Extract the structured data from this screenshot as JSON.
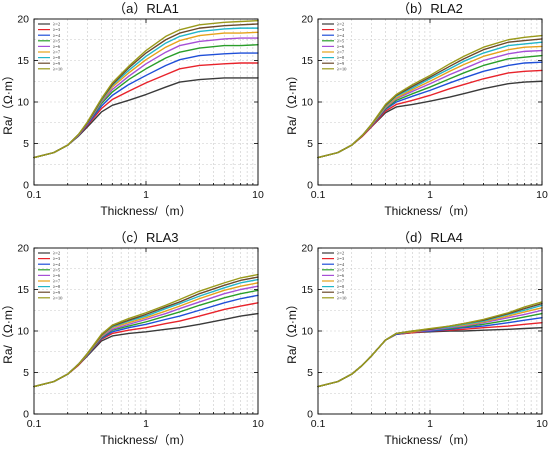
{
  "chart_data": [
    {
      "type": "line",
      "title": "（a）RLA1",
      "xlabel": "Thickness/（m）",
      "ylabel": "Ra/（Ω·m）",
      "xscale": "log",
      "xlim": [
        0.1,
        10
      ],
      "ylim": [
        0,
        20
      ],
      "xticks": [
        0.1,
        1,
        10
      ],
      "xtick_labels": [
        "0.1",
        "1",
        "10"
      ],
      "yticks": [
        0,
        5,
        10,
        15,
        20
      ],
      "ytick_labels": [
        "0",
        "5",
        "10",
        "15",
        "20"
      ],
      "grid": true,
      "legend": "top-left",
      "x": [
        0.1,
        0.15,
        0.2,
        0.25,
        0.3,
        0.4,
        0.5,
        0.7,
        1,
        1.5,
        2,
        3,
        5,
        7,
        10
      ],
      "series": [
        {
          "name": "λ=2",
          "color": "#3a3a3a",
          "values": [
            3.3,
            3.9,
            4.8,
            5.9,
            7.0,
            8.8,
            9.6,
            10.2,
            10.9,
            11.8,
            12.4,
            12.7,
            12.9,
            12.9,
            12.9
          ]
        },
        {
          "name": "λ=3",
          "color": "#e8232b",
          "values": [
            3.3,
            3.9,
            4.8,
            6.0,
            7.2,
            9.2,
            10.3,
            11.3,
            12.3,
            13.3,
            14.0,
            14.4,
            14.6,
            14.7,
            14.7
          ]
        },
        {
          "name": "λ=4",
          "color": "#1f4fd8",
          "values": [
            3.3,
            3.9,
            4.8,
            6.0,
            7.3,
            9.5,
            10.8,
            12.1,
            13.2,
            14.4,
            15.1,
            15.6,
            15.8,
            15.9,
            15.9
          ]
        },
        {
          "name": "λ=5",
          "color": "#2a9e2a",
          "values": [
            3.3,
            3.9,
            4.8,
            6.0,
            7.4,
            9.8,
            11.2,
            12.7,
            14.0,
            15.3,
            16.0,
            16.5,
            16.8,
            16.8,
            16.9
          ]
        },
        {
          "name": "λ=6",
          "color": "#a64fd6",
          "values": [
            3.3,
            3.9,
            4.8,
            6.0,
            7.4,
            10.0,
            11.5,
            13.1,
            14.6,
            16.0,
            16.8,
            17.3,
            17.6,
            17.7,
            17.7
          ]
        },
        {
          "name": "λ=7",
          "color": "#e6a21a",
          "values": [
            3.3,
            3.9,
            4.8,
            6.1,
            7.5,
            10.1,
            11.8,
            13.5,
            15.1,
            16.6,
            17.4,
            18.0,
            18.3,
            18.3,
            18.4
          ]
        },
        {
          "name": "λ=8",
          "color": "#21b6c9",
          "values": [
            3.3,
            3.9,
            4.8,
            6.1,
            7.5,
            10.2,
            12.0,
            13.8,
            15.5,
            17.1,
            17.9,
            18.5,
            18.8,
            18.9,
            18.9
          ]
        },
        {
          "name": "λ=9",
          "color": "#6b4a2b",
          "values": [
            3.3,
            3.9,
            4.8,
            6.1,
            7.5,
            10.3,
            12.1,
            14.1,
            15.9,
            17.5,
            18.3,
            18.9,
            19.2,
            19.3,
            19.4
          ]
        },
        {
          "name": "λ=10",
          "color": "#9a9a1a",
          "values": [
            3.3,
            3.9,
            4.8,
            6.1,
            7.6,
            10.4,
            12.3,
            14.3,
            16.2,
            17.9,
            18.7,
            19.3,
            19.6,
            19.7,
            19.8
          ]
        }
      ]
    },
    {
      "type": "line",
      "title": "（b）RLA2",
      "xlabel": "Thickness/（m）",
      "ylabel": "Ra/（Ω·m）",
      "xscale": "log",
      "xlim": [
        0.1,
        10
      ],
      "ylim": [
        0,
        20
      ],
      "xticks": [
        0.1,
        1,
        10
      ],
      "xtick_labels": [
        "0.1",
        "1",
        "10"
      ],
      "yticks": [
        0,
        5,
        10,
        15,
        20
      ],
      "ytick_labels": [
        "0",
        "5",
        "10",
        "15",
        "20"
      ],
      "grid": true,
      "legend": "top-left",
      "x": [
        0.1,
        0.15,
        0.2,
        0.25,
        0.3,
        0.4,
        0.5,
        0.7,
        1,
        1.5,
        2,
        3,
        5,
        7,
        10
      ],
      "series": [
        {
          "name": "λ=2",
          "color": "#3a3a3a",
          "values": [
            3.3,
            3.9,
            4.8,
            5.9,
            7.0,
            8.7,
            9.4,
            9.7,
            10.1,
            10.6,
            11.0,
            11.6,
            12.2,
            12.4,
            12.5
          ]
        },
        {
          "name": "λ=3",
          "color": "#e8232b",
          "values": [
            3.3,
            3.9,
            4.8,
            5.9,
            7.0,
            8.9,
            9.7,
            10.2,
            10.8,
            11.6,
            12.1,
            12.8,
            13.5,
            13.7,
            13.8
          ]
        },
        {
          "name": "λ=4",
          "color": "#1f4fd8",
          "values": [
            3.3,
            3.9,
            4.8,
            6.0,
            7.1,
            9.1,
            10.0,
            10.7,
            11.4,
            12.3,
            12.9,
            13.7,
            14.4,
            14.7,
            14.8
          ]
        },
        {
          "name": "λ=5",
          "color": "#2a9e2a",
          "values": [
            3.3,
            3.9,
            4.8,
            6.0,
            7.2,
            9.2,
            10.2,
            11.0,
            11.8,
            12.8,
            13.5,
            14.4,
            15.2,
            15.4,
            15.6
          ]
        },
        {
          "name": "λ=6",
          "color": "#a64fd6",
          "values": [
            3.3,
            3.9,
            4.8,
            6.0,
            7.2,
            9.3,
            10.4,
            11.3,
            12.2,
            13.3,
            14.0,
            15.0,
            15.8,
            16.1,
            16.2
          ]
        },
        {
          "name": "λ=7",
          "color": "#e6a21a",
          "values": [
            3.3,
            3.9,
            4.8,
            6.0,
            7.2,
            9.4,
            10.5,
            11.5,
            12.5,
            13.7,
            14.5,
            15.5,
            16.3,
            16.6,
            16.7
          ]
        },
        {
          "name": "λ=8",
          "color": "#21b6c9",
          "values": [
            3.3,
            3.9,
            4.8,
            6.0,
            7.3,
            9.5,
            10.7,
            11.7,
            12.8,
            14.0,
            14.9,
            15.9,
            16.8,
            17.0,
            17.2
          ]
        },
        {
          "name": "λ=9",
          "color": "#6b4a2b",
          "values": [
            3.3,
            3.9,
            4.8,
            6.0,
            7.3,
            9.6,
            10.8,
            11.9,
            13.0,
            14.3,
            15.2,
            16.3,
            17.2,
            17.4,
            17.6
          ]
        },
        {
          "name": "λ=10",
          "color": "#9a9a1a",
          "values": [
            3.3,
            3.9,
            4.8,
            6.0,
            7.3,
            9.7,
            10.9,
            12.1,
            13.2,
            14.6,
            15.5,
            16.6,
            17.5,
            17.8,
            18.0
          ]
        }
      ]
    },
    {
      "type": "line",
      "title": "（c）RLA3",
      "xlabel": "Thickness/（m）",
      "ylabel": "Ra/（Ω·m）",
      "xscale": "log",
      "xlim": [
        0.1,
        10
      ],
      "ylim": [
        0,
        20
      ],
      "xticks": [
        0.1,
        1,
        10
      ],
      "xtick_labels": [
        "0.1",
        "1",
        "10"
      ],
      "yticks": [
        0,
        5,
        10,
        15,
        20
      ],
      "ytick_labels": [
        "0",
        "5",
        "10",
        "15",
        "20"
      ],
      "grid": true,
      "legend": "top-left",
      "x": [
        0.1,
        0.15,
        0.2,
        0.25,
        0.3,
        0.4,
        0.5,
        0.7,
        1,
        1.5,
        2,
        3,
        5,
        7,
        10
      ],
      "series": [
        {
          "name": "λ=2",
          "color": "#3a3a3a",
          "values": [
            3.3,
            3.9,
            4.8,
            5.9,
            7.0,
            8.8,
            9.4,
            9.7,
            9.9,
            10.2,
            10.4,
            10.8,
            11.4,
            11.8,
            12.1
          ]
        },
        {
          "name": "λ=3",
          "color": "#e8232b",
          "values": [
            3.3,
            3.9,
            4.8,
            5.9,
            7.1,
            9.0,
            9.7,
            10.1,
            10.4,
            10.9,
            11.2,
            11.8,
            12.6,
            13.0,
            13.4
          ]
        },
        {
          "name": "λ=4",
          "color": "#1f4fd8",
          "values": [
            3.3,
            3.9,
            4.8,
            6.0,
            7.1,
            9.1,
            9.9,
            10.4,
            10.8,
            11.4,
            11.8,
            12.5,
            13.4,
            13.9,
            14.3
          ]
        },
        {
          "name": "λ=5",
          "color": "#2a9e2a",
          "values": [
            3.3,
            3.9,
            4.8,
            6.0,
            7.2,
            9.2,
            10.1,
            10.6,
            11.1,
            11.8,
            12.3,
            13.1,
            14.0,
            14.5,
            14.9
          ]
        },
        {
          "name": "λ=6",
          "color": "#a64fd6",
          "values": [
            3.3,
            3.9,
            4.8,
            6.0,
            7.2,
            9.3,
            10.2,
            10.8,
            11.4,
            12.1,
            12.7,
            13.5,
            14.5,
            15.0,
            15.4
          ]
        },
        {
          "name": "λ=7",
          "color": "#e6a21a",
          "values": [
            3.3,
            3.9,
            4.8,
            6.0,
            7.2,
            9.4,
            10.4,
            11.0,
            11.6,
            12.4,
            13.0,
            13.9,
            14.9,
            15.4,
            15.8
          ]
        },
        {
          "name": "λ=8",
          "color": "#21b6c9",
          "values": [
            3.3,
            3.9,
            4.8,
            6.0,
            7.3,
            9.5,
            10.5,
            11.2,
            11.8,
            12.7,
            13.3,
            14.2,
            15.2,
            15.8,
            16.2
          ]
        },
        {
          "name": "λ=9",
          "color": "#6b4a2b",
          "values": [
            3.3,
            3.9,
            4.8,
            6.0,
            7.3,
            9.5,
            10.6,
            11.3,
            12.0,
            12.9,
            13.5,
            14.5,
            15.5,
            16.1,
            16.5
          ]
        },
        {
          "name": "λ=10",
          "color": "#9a9a1a",
          "values": [
            3.3,
            3.9,
            4.8,
            6.0,
            7.3,
            9.6,
            10.7,
            11.5,
            12.2,
            13.1,
            13.8,
            14.8,
            15.8,
            16.4,
            16.8
          ]
        }
      ]
    },
    {
      "type": "line",
      "title": "（d）RLA4",
      "xlabel": "Thickness/（m）",
      "ylabel": "Ra/（Ω·m）",
      "xscale": "log",
      "xlim": [
        0.1,
        10
      ],
      "ylim": [
        0,
        20
      ],
      "xticks": [
        0.1,
        1,
        10
      ],
      "xtick_labels": [
        "0.1",
        "1",
        "10"
      ],
      "yticks": [
        0,
        5,
        10,
        15,
        20
      ],
      "ytick_labels": [
        "0",
        "5",
        "10",
        "15",
        "20"
      ],
      "grid": true,
      "legend": "top-left",
      "x": [
        0.1,
        0.15,
        0.2,
        0.25,
        0.3,
        0.4,
        0.5,
        0.7,
        1,
        1.5,
        2,
        3,
        5,
        7,
        10
      ],
      "series": [
        {
          "name": "λ=2",
          "color": "#3a3a3a",
          "values": [
            3.3,
            3.9,
            4.8,
            5.9,
            7.0,
            8.9,
            9.6,
            9.8,
            9.9,
            10.0,
            10.0,
            10.1,
            10.2,
            10.3,
            10.4
          ]
        },
        {
          "name": "λ=3",
          "color": "#e8232b",
          "values": [
            3.3,
            3.9,
            4.8,
            5.9,
            7.0,
            8.9,
            9.6,
            9.8,
            10.0,
            10.1,
            10.2,
            10.4,
            10.6,
            10.8,
            11.0
          ]
        },
        {
          "name": "λ=4",
          "color": "#1f4fd8",
          "values": [
            3.3,
            3.9,
            4.8,
            5.9,
            7.0,
            8.9,
            9.6,
            9.9,
            10.0,
            10.2,
            10.4,
            10.6,
            11.0,
            11.3,
            11.6
          ]
        },
        {
          "name": "λ=5",
          "color": "#2a9e2a",
          "values": [
            3.3,
            3.9,
            4.8,
            5.9,
            7.0,
            8.9,
            9.7,
            9.9,
            10.1,
            10.3,
            10.5,
            10.8,
            11.3,
            11.7,
            12.1
          ]
        },
        {
          "name": "λ=6",
          "color": "#a64fd6",
          "values": [
            3.3,
            3.9,
            4.8,
            5.9,
            7.0,
            8.9,
            9.7,
            9.9,
            10.1,
            10.4,
            10.6,
            11.0,
            11.6,
            12.0,
            12.5
          ]
        },
        {
          "name": "λ=7",
          "color": "#e6a21a",
          "values": [
            3.3,
            3.9,
            4.8,
            5.9,
            7.0,
            8.9,
            9.7,
            9.9,
            10.2,
            10.5,
            10.7,
            11.1,
            11.8,
            12.3,
            12.8
          ]
        },
        {
          "name": "λ=8",
          "color": "#21b6c9",
          "values": [
            3.3,
            3.9,
            4.8,
            5.9,
            7.0,
            8.9,
            9.7,
            10.0,
            10.2,
            10.5,
            10.8,
            11.2,
            12.0,
            12.5,
            13.1
          ]
        },
        {
          "name": "λ=9",
          "color": "#6b4a2b",
          "values": [
            3.3,
            3.9,
            4.8,
            5.9,
            7.0,
            8.9,
            9.7,
            10.0,
            10.2,
            10.6,
            10.9,
            11.3,
            12.1,
            12.7,
            13.3
          ]
        },
        {
          "name": "λ=10",
          "color": "#9a9a1a",
          "values": [
            3.3,
            3.9,
            4.8,
            5.9,
            7.0,
            8.9,
            9.7,
            10.0,
            10.3,
            10.6,
            10.9,
            11.4,
            12.2,
            12.9,
            13.5
          ]
        }
      ]
    }
  ]
}
